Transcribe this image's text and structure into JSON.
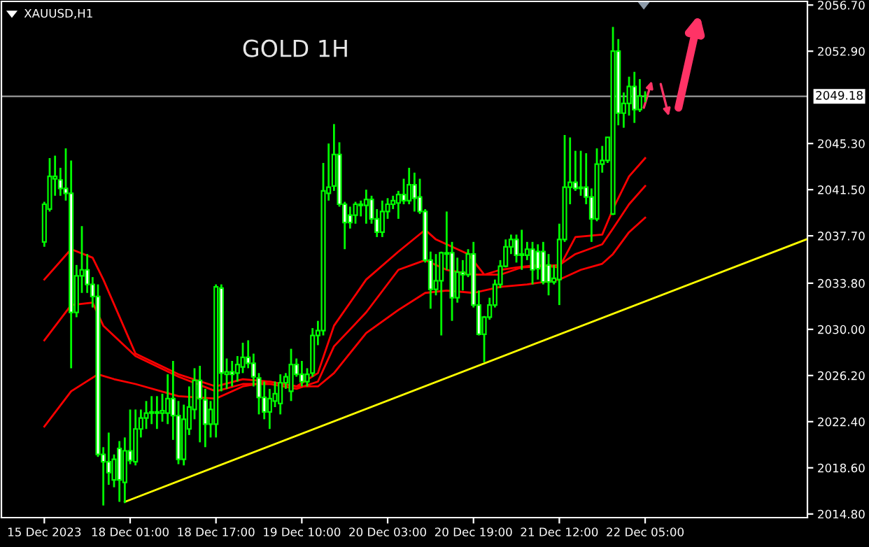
{
  "chart_data": {
    "type": "candlestick",
    "title": "GOLD 1H",
    "annotations": [
      "XAUUSD,H1"
    ],
    "categories": [
      "15 Dec 2023",
      null,
      null,
      null,
      null,
      null,
      null,
      null,
      null,
      null,
      null,
      null,
      null,
      null,
      null,
      null,
      "18 Dec 01:00",
      null,
      null,
      null,
      null,
      null,
      null,
      null,
      null,
      null,
      null,
      null,
      null,
      null,
      null,
      null,
      "18 Dec 17:00",
      null,
      null,
      null,
      null,
      null,
      null,
      null,
      null,
      null,
      null,
      null,
      null,
      null,
      null,
      null,
      "19 Dec 10:00",
      null,
      null,
      null,
      null,
      null,
      null,
      null,
      null,
      null,
      null,
      null,
      null,
      null,
      null,
      null,
      "20 Dec 03:00",
      null,
      null,
      null,
      null,
      null,
      null,
      null,
      null,
      null,
      null,
      null,
      null,
      null,
      null,
      null,
      "20 Dec 19:00",
      null,
      null,
      null,
      null,
      null,
      null,
      null,
      null,
      null,
      null,
      null,
      null,
      null,
      null,
      null,
      "21 Dec 12:00",
      null,
      null,
      null,
      null,
      null,
      null,
      null,
      null,
      null,
      null,
      null,
      null,
      null,
      null,
      null,
      "22 Dec 05:00",
      null,
      null,
      null,
      null,
      null,
      null,
      null,
      null,
      null,
      null,
      null,
      null,
      null,
      null,
      null,
      null,
      null,
      null,
      null,
      null,
      null,
      null,
      null,
      null,
      null,
      null,
      null,
      null,
      null,
      null
    ],
    "ylim": [
      2014.5,
      2057.0
    ],
    "yticks": [
      {
        "value": 2014.8,
        "label": "2014.80"
      },
      {
        "value": 2018.6,
        "label": "2018.60"
      },
      {
        "value": 2022.4,
        "label": "2022.40"
      },
      {
        "value": 2026.2,
        "label": "2026.20"
      },
      {
        "value": 2030.0,
        "label": "2030.00"
      },
      {
        "value": 2033.8,
        "label": "2033.80"
      },
      {
        "value": 2037.7,
        "label": "2037.70"
      },
      {
        "value": 2041.5,
        "label": "2041.50"
      },
      {
        "value": 2045.3,
        "label": "2045.30"
      },
      {
        "value": 2052.9,
        "label": "2052.90"
      },
      {
        "value": 2056.7,
        "label": "2056.70"
      }
    ],
    "ref_lines": [
      {
        "axis": "y",
        "value": 2049.18,
        "label": "2049.18",
        "color": "#8c8c8c"
      }
    ],
    "ohlc": [
      [
        2037.2,
        2040.5,
        2036.8,
        2040.3
      ],
      [
        2039.9,
        2044.1,
        2039.7,
        2042.6
      ],
      [
        2042.4,
        2044.3,
        2041.0,
        2042.6
      ],
      [
        2042.3,
        2043.3,
        2041.0,
        2041.6
      ],
      [
        2041.6,
        2044.9,
        2040.6,
        2041.2
      ],
      [
        2041.2,
        2043.9,
        2026.8,
        2031.4
      ],
      [
        2031.4,
        2035.3,
        2031.0,
        2034.4
      ],
      [
        2034.4,
        2038.5,
        2033.0,
        2034.9
      ],
      [
        2034.9,
        2036.2,
        2033.0,
        2033.7
      ],
      [
        2033.7,
        2034.3,
        2031.8,
        2032.7
      ],
      [
        2032.7,
        2033.7,
        2019.5,
        2019.7
      ],
      [
        2019.7,
        2020.3,
        2015.5,
        2019.1
      ],
      [
        2019.1,
        2021.5,
        2017.2,
        2018.2
      ],
      [
        2017.6,
        2019.7,
        2017.0,
        2019.3
      ],
      [
        2020.2,
        2020.8,
        2015.8,
        2017.6
      ],
      [
        2017.4,
        2021.1,
        2015.7,
        2020.0
      ],
      [
        2020.0,
        2023.4,
        2018.9,
        2019.2
      ],
      [
        2019.1,
        2023.4,
        2018.8,
        2021.8
      ],
      [
        2021.8,
        2023.4,
        2021.1,
        2022.7
      ],
      [
        2022.7,
        2024.1,
        2021.8,
        2023.1
      ],
      [
        2023.1,
        2024.5,
        2022.2,
        2023.2
      ],
      [
        2023.2,
        2024.5,
        2021.8,
        2023.1
      ],
      [
        2023.1,
        2024.7,
        2022.4,
        2023.3
      ],
      [
        2023.1,
        2026.3,
        2022.2,
        2024.3
      ],
      [
        2024.3,
        2027.4,
        2020.9,
        2022.9
      ],
      [
        2022.9,
        2024.1,
        2018.9,
        2019.3
      ],
      [
        2019.3,
        2023.8,
        2018.8,
        2022.6
      ],
      [
        2021.8,
        2025.3,
        2021.3,
        2023.6
      ],
      [
        2023.4,
        2026.8,
        2022.6,
        2025.8
      ],
      [
        2025.8,
        2027.0,
        2020.7,
        2024.3
      ],
      [
        2024.2,
        2025.1,
        2020.3,
        2022.2
      ],
      [
        2022.2,
        2024.1,
        2021.1,
        2023.4
      ],
      [
        2022.2,
        2033.7,
        2021.1,
        2033.5
      ],
      [
        2033.4,
        2033.7,
        2024.9,
        2026.4
      ],
      [
        2026.3,
        2027.6,
        2025.1,
        2026.5
      ],
      [
        2026.5,
        2027.4,
        2025.3,
        2026.3
      ],
      [
        2026.4,
        2027.8,
        2025.7,
        2027.1
      ],
      [
        2026.9,
        2028.9,
        2026.4,
        2027.7
      ],
      [
        2027.7,
        2029.1,
        2026.8,
        2027.2
      ],
      [
        2027.2,
        2028.0,
        2025.3,
        2026.1
      ],
      [
        2026.0,
        2026.4,
        2023.0,
        2024.4
      ],
      [
        2024.4,
        2025.7,
        2022.6,
        2023.2
      ],
      [
        2023.2,
        2025.1,
        2021.8,
        2024.3
      ],
      [
        2024.1,
        2025.7,
        2023.6,
        2024.7
      ],
      [
        2023.9,
        2026.3,
        2023.0,
        2025.6
      ],
      [
        2025.6,
        2026.4,
        2025.1,
        2026.1
      ],
      [
        2024.9,
        2028.4,
        2024.1,
        2027.1
      ],
      [
        2027.1,
        2027.6,
        2026.1,
        2026.3
      ],
      [
        2026.3,
        2027.4,
        2025.3,
        2025.7
      ],
      [
        2025.7,
        2026.8,
        2025.3,
        2026.3
      ],
      [
        2026.4,
        2030.1,
        2026.1,
        2029.5
      ],
      [
        2029.5,
        2030.7,
        2028.7,
        2029.9
      ],
      [
        2029.9,
        2043.7,
        2029.5,
        2041.4
      ],
      [
        2041.2,
        2045.3,
        2040.6,
        2041.7
      ],
      [
        2041.8,
        2046.9,
        2041.4,
        2044.4
      ],
      [
        2044.4,
        2045.4,
        2040.1,
        2040.3
      ],
      [
        2040.3,
        2040.5,
        2036.6,
        2038.8
      ],
      [
        2039.4,
        2040.1,
        2038.3,
        2038.8
      ],
      [
        2039.4,
        2040.5,
        2038.7,
        2040.3
      ],
      [
        2040.2,
        2040.6,
        2039.3,
        2040.3
      ],
      [
        2040.2,
        2041.5,
        2038.7,
        2040.7
      ],
      [
        2040.7,
        2041.0,
        2038.7,
        2039.1
      ],
      [
        2039.1,
        2039.9,
        2037.6,
        2038.0
      ],
      [
        2038.0,
        2040.6,
        2037.6,
        2039.7
      ],
      [
        2039.7,
        2040.8,
        2039.1,
        2040.3
      ],
      [
        2040.3,
        2041.0,
        2039.9,
        2040.6
      ],
      [
        2040.4,
        2041.4,
        2039.1,
        2041.1
      ],
      [
        2041.1,
        2042.4,
        2040.3,
        2040.6
      ],
      [
        2040.6,
        2043.3,
        2040.3,
        2041.9
      ],
      [
        2041.9,
        2042.9,
        2039.7,
        2040.8
      ],
      [
        2040.9,
        2042.4,
        2039.5,
        2039.7
      ],
      [
        2039.7,
        2039.9,
        2035.5,
        2035.7
      ],
      [
        2035.7,
        2036.4,
        2031.7,
        2033.3
      ],
      [
        2033.3,
        2036.2,
        2032.8,
        2034.0
      ],
      [
        2034.0,
        2036.4,
        2029.5,
        2036.3
      ],
      [
        2036.2,
        2039.7,
        2034.9,
        2036.3
      ],
      [
        2036.3,
        2037.2,
        2030.7,
        2032.6
      ],
      [
        2032.6,
        2035.9,
        2032.2,
        2034.7
      ],
      [
        2034.7,
        2035.7,
        2033.2,
        2034.5
      ],
      [
        2034.5,
        2036.6,
        2034.3,
        2036.2
      ],
      [
        2036.2,
        2037.2,
        2031.8,
        2032.0
      ],
      [
        2032.0,
        2033.2,
        2029.5,
        2029.6
      ],
      [
        2029.6,
        2031.1,
        2027.3,
        2031.0
      ],
      [
        2031.0,
        2032.6,
        2030.8,
        2032.0
      ],
      [
        2032.0,
        2034.1,
        2031.8,
        2033.7
      ],
      [
        2033.7,
        2035.7,
        2033.4,
        2035.2
      ],
      [
        2035.2,
        2037.4,
        2035.1,
        2036.8
      ],
      [
        2036.8,
        2037.8,
        2036.2,
        2037.4
      ],
      [
        2037.4,
        2037.8,
        2035.5,
        2036.1
      ],
      [
        2036.1,
        2038.2,
        2034.9,
        2036.2
      ],
      [
        2036.1,
        2037.2,
        2035.7,
        2036.6
      ],
      [
        2036.6,
        2037.2,
        2033.7,
        2034.9
      ],
      [
        2036.4,
        2037.0,
        2034.1,
        2035.0
      ],
      [
        2036.4,
        2037.2,
        2033.7,
        2033.9
      ],
      [
        2035.3,
        2036.2,
        2032.8,
        2033.9
      ],
      [
        2033.9,
        2035.3,
        2033.7,
        2034.2
      ],
      [
        2034.1,
        2038.7,
        2032.0,
        2037.4
      ],
      [
        2037.4,
        2046.0,
        2037.2,
        2041.7
      ],
      [
        2041.7,
        2045.8,
        2040.3,
        2042.1
      ],
      [
        2042.1,
        2044.7,
        2041.4,
        2041.6
      ],
      [
        2041.6,
        2044.7,
        2041.0,
        2041.7
      ],
      [
        2041.7,
        2044.5,
        2040.3,
        2040.9
      ],
      [
        2040.9,
        2041.6,
        2037.2,
        2039.1
      ],
      [
        2039.1,
        2044.9,
        2038.9,
        2043.6
      ],
      [
        2043.6,
        2045.1,
        2042.9,
        2043.9
      ],
      [
        2043.9,
        2045.8,
        2043.7,
        2045.8
      ],
      [
        2039.5,
        2054.9,
        2039.4,
        2052.9
      ],
      [
        2052.9,
        2053.9,
        2046.8,
        2047.8
      ],
      [
        2047.8,
        2049.5,
        2046.6,
        2048.6
      ],
      [
        2048.6,
        2050.8,
        2047.6,
        2050.0
      ],
      [
        2050.0,
        2051.2,
        2047.0,
        2048.1
      ],
      [
        2048.1,
        2050.6,
        2047.9,
        2049.2
      ],
      [
        2049.2,
        2049.6,
        2048.7,
        2049.2
      ],
      null,
      null,
      null,
      null,
      null,
      null,
      null,
      null,
      null,
      null,
      null,
      null,
      null,
      null,
      null,
      null,
      null,
      null,
      null,
      null,
      null,
      null,
      null,
      null,
      null,
      null,
      null,
      null,
      null,
      null
    ],
    "series": [
      {
        "type": "line",
        "color": "#ff0000",
        "values": [
          2034.1,
          null,
          null,
          null,
          null,
          2036.6,
          null,
          null,
          null,
          2035.9,
          null,
          2034.1,
          null,
          null,
          null,
          null,
          null,
          2028.0,
          null,
          null,
          null,
          null,
          null,
          null,
          null,
          2026.3,
          null,
          null,
          null,
          null,
          null,
          null,
          2025.3,
          null,
          null,
          null,
          null,
          2025.9,
          null,
          null,
          null,
          null,
          2025.7,
          null,
          null,
          null,
          null,
          2025.3,
          null,
          null,
          null,
          2026.4,
          null,
          null,
          2030.3,
          null,
          null,
          null,
          null,
          null,
          2034.1,
          null,
          null,
          null,
          null,
          null,
          2036.4,
          null,
          null,
          null,
          null,
          2038.2,
          null,
          2037.4,
          null,
          null,
          null,
          null,
          null,
          2036.2,
          null,
          null,
          2034.5,
          null,
          null,
          2034.9,
          null,
          null,
          2035.1,
          null,
          null,
          null,
          2035.3,
          null,
          null,
          null,
          2035.1,
          null,
          null,
          2037.6,
          null,
          null,
          null,
          null,
          2037.8,
          null,
          2039.9,
          null,
          null,
          2042.6,
          null,
          null,
          2044.1,
          null,
          null,
          null,
          null,
          null,
          null,
          null,
          null,
          null,
          null,
          null,
          null,
          null,
          null,
          null,
          null,
          null,
          null,
          null,
          null,
          null,
          null,
          null,
          null,
          null,
          null,
          null,
          null,
          null,
          null
        ]
      },
      {
        "type": "line",
        "color": "#ff0000",
        "values": [
          2029.1,
          null,
          null,
          null,
          null,
          2032.0,
          null,
          null,
          null,
          2032.2,
          null,
          2030.3,
          null,
          null,
          null,
          null,
          null,
          2027.8,
          null,
          null,
          null,
          null,
          null,
          null,
          null,
          2026.1,
          null,
          null,
          null,
          null,
          null,
          null,
          2024.9,
          null,
          null,
          null,
          null,
          2025.5,
          null,
          null,
          null,
          null,
          2025.5,
          null,
          null,
          null,
          null,
          2025.1,
          null,
          null,
          null,
          2025.7,
          null,
          null,
          2028.6,
          null,
          null,
          null,
          null,
          null,
          2031.4,
          null,
          null,
          null,
          null,
          null,
          2034.9,
          null,
          null,
          null,
          null,
          2035.7,
          null,
          null,
          null,
          2034.9,
          null,
          null,
          null,
          null,
          2034.5,
          null,
          null,
          null,
          null,
          2034.5,
          null,
          null,
          null,
          2035.1,
          null,
          null,
          null,
          null,
          null,
          null,
          2035.3,
          null,
          null,
          2036.2,
          null,
          null,
          null,
          null,
          2037.0,
          null,
          2038.3,
          null,
          null,
          2040.3,
          null,
          null,
          2041.8,
          null,
          null,
          null,
          null,
          null,
          null,
          null,
          null,
          null,
          null,
          null,
          null,
          null,
          null,
          null,
          null,
          null,
          null,
          null,
          null,
          null,
          null,
          null,
          null,
          null,
          null,
          null,
          null,
          null,
          null
        ]
      },
      {
        "type": "line",
        "color": "#ff0000",
        "values": [
          2022.0,
          null,
          null,
          null,
          null,
          2024.9,
          null,
          null,
          null,
          null,
          2026.3,
          null,
          null,
          2025.9,
          null,
          null,
          null,
          2025.5,
          null,
          null,
          null,
          null,
          null,
          null,
          null,
          2024.5,
          null,
          null,
          null,
          null,
          null,
          null,
          2024.3,
          null,
          null,
          null,
          null,
          2025.3,
          null,
          null,
          null,
          null,
          2025.7,
          null,
          null,
          null,
          null,
          2025.3,
          null,
          null,
          null,
          2025.3,
          null,
          null,
          2026.4,
          null,
          null,
          null,
          null,
          null,
          2029.7,
          null,
          null,
          null,
          null,
          null,
          2031.6,
          null,
          null,
          null,
          null,
          2033.0,
          null,
          null,
          null,
          2033.2,
          null,
          null,
          null,
          null,
          2033.0,
          null,
          null,
          null,
          null,
          2033.5,
          null,
          null,
          null,
          null,
          2033.7,
          null,
          null,
          null,
          null,
          null,
          2034.1,
          null,
          null,
          null,
          2034.9,
          null,
          null,
          null,
          2035.4,
          null,
          2036.2,
          null,
          null,
          2038.0,
          null,
          null,
          2039.2,
          null,
          null,
          null,
          null,
          null,
          null,
          null,
          null,
          null,
          null,
          null,
          null,
          null,
          null,
          null,
          null,
          null,
          null,
          null,
          null,
          null,
          null,
          null,
          null,
          null,
          null,
          null,
          null,
          null,
          null
        ]
      },
      {
        "type": "line",
        "color": "#ffff00",
        "values": [
          null,
          null,
          null,
          null,
          null,
          null,
          null,
          null,
          null,
          null,
          null,
          null,
          null,
          null,
          null,
          2015.8,
          null,
          null,
          null,
          null,
          null,
          null,
          null,
          null,
          null,
          null,
          null,
          null,
          null,
          null,
          null,
          null,
          null,
          null,
          null,
          null,
          null,
          null,
          null,
          null,
          null,
          null,
          null,
          null,
          null,
          null,
          null,
          null,
          null,
          null,
          null,
          null,
          null,
          null,
          null,
          null,
          null,
          null,
          null,
          null,
          null,
          null,
          null,
          null,
          null,
          null,
          null,
          null,
          null,
          null,
          null,
          null,
          null,
          null,
          null,
          null,
          null,
          null,
          null,
          null,
          null,
          null,
          null,
          null,
          null,
          null,
          null,
          null,
          null,
          null,
          null,
          null,
          null,
          null,
          null,
          null,
          null,
          null,
          null,
          null,
          null,
          null,
          null,
          null,
          null,
          null,
          null,
          null,
          null,
          null,
          null,
          null,
          null,
          null,
          null,
          null,
          null,
          null,
          null,
          null,
          null,
          null,
          null,
          null,
          null,
          null,
          null,
          null,
          null,
          null,
          null,
          null,
          null,
          null,
          null,
          null,
          null,
          null,
          null,
          null,
          null,
          null,
          2037.4
        ]
      }
    ]
  }
}
